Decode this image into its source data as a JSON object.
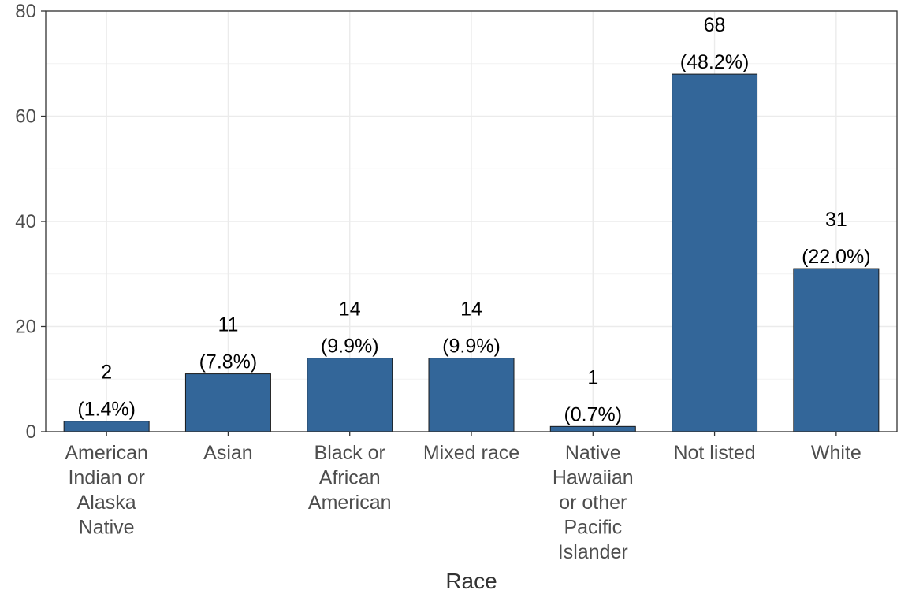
{
  "chart_data": {
    "type": "bar",
    "title": "",
    "xlabel": "Race",
    "ylabel": "",
    "ylim": [
      0,
      80
    ],
    "yticks": [
      0,
      20,
      40,
      60,
      80
    ],
    "grid": true,
    "bar_color": "#336699",
    "categories": [
      "American Indian or Alaska Native",
      "Asian",
      "Black or African American",
      "Mixed race",
      "Native Hawaiian or other Pacific Islander",
      "Not listed",
      "White"
    ],
    "category_lines": [
      [
        "American",
        "Indian or",
        "Alaska",
        "Native"
      ],
      [
        "Asian"
      ],
      [
        "Black or",
        "African",
        "American"
      ],
      [
        "Mixed race"
      ],
      [
        "Native",
        "Hawaiian",
        "or other",
        "Pacific",
        "Islander"
      ],
      [
        "Not listed"
      ],
      [
        "White"
      ]
    ],
    "values": [
      2,
      11,
      14,
      14,
      1,
      68,
      31
    ],
    "value_labels": [
      "2",
      "11",
      "14",
      "14",
      "1",
      "68",
      "31"
    ],
    "percent_labels": [
      "(1.4%)",
      "(7.8%)",
      "(9.9%)",
      "(9.9%)",
      "(0.7%)",
      "(48.2%)",
      "(22.0%)"
    ]
  }
}
